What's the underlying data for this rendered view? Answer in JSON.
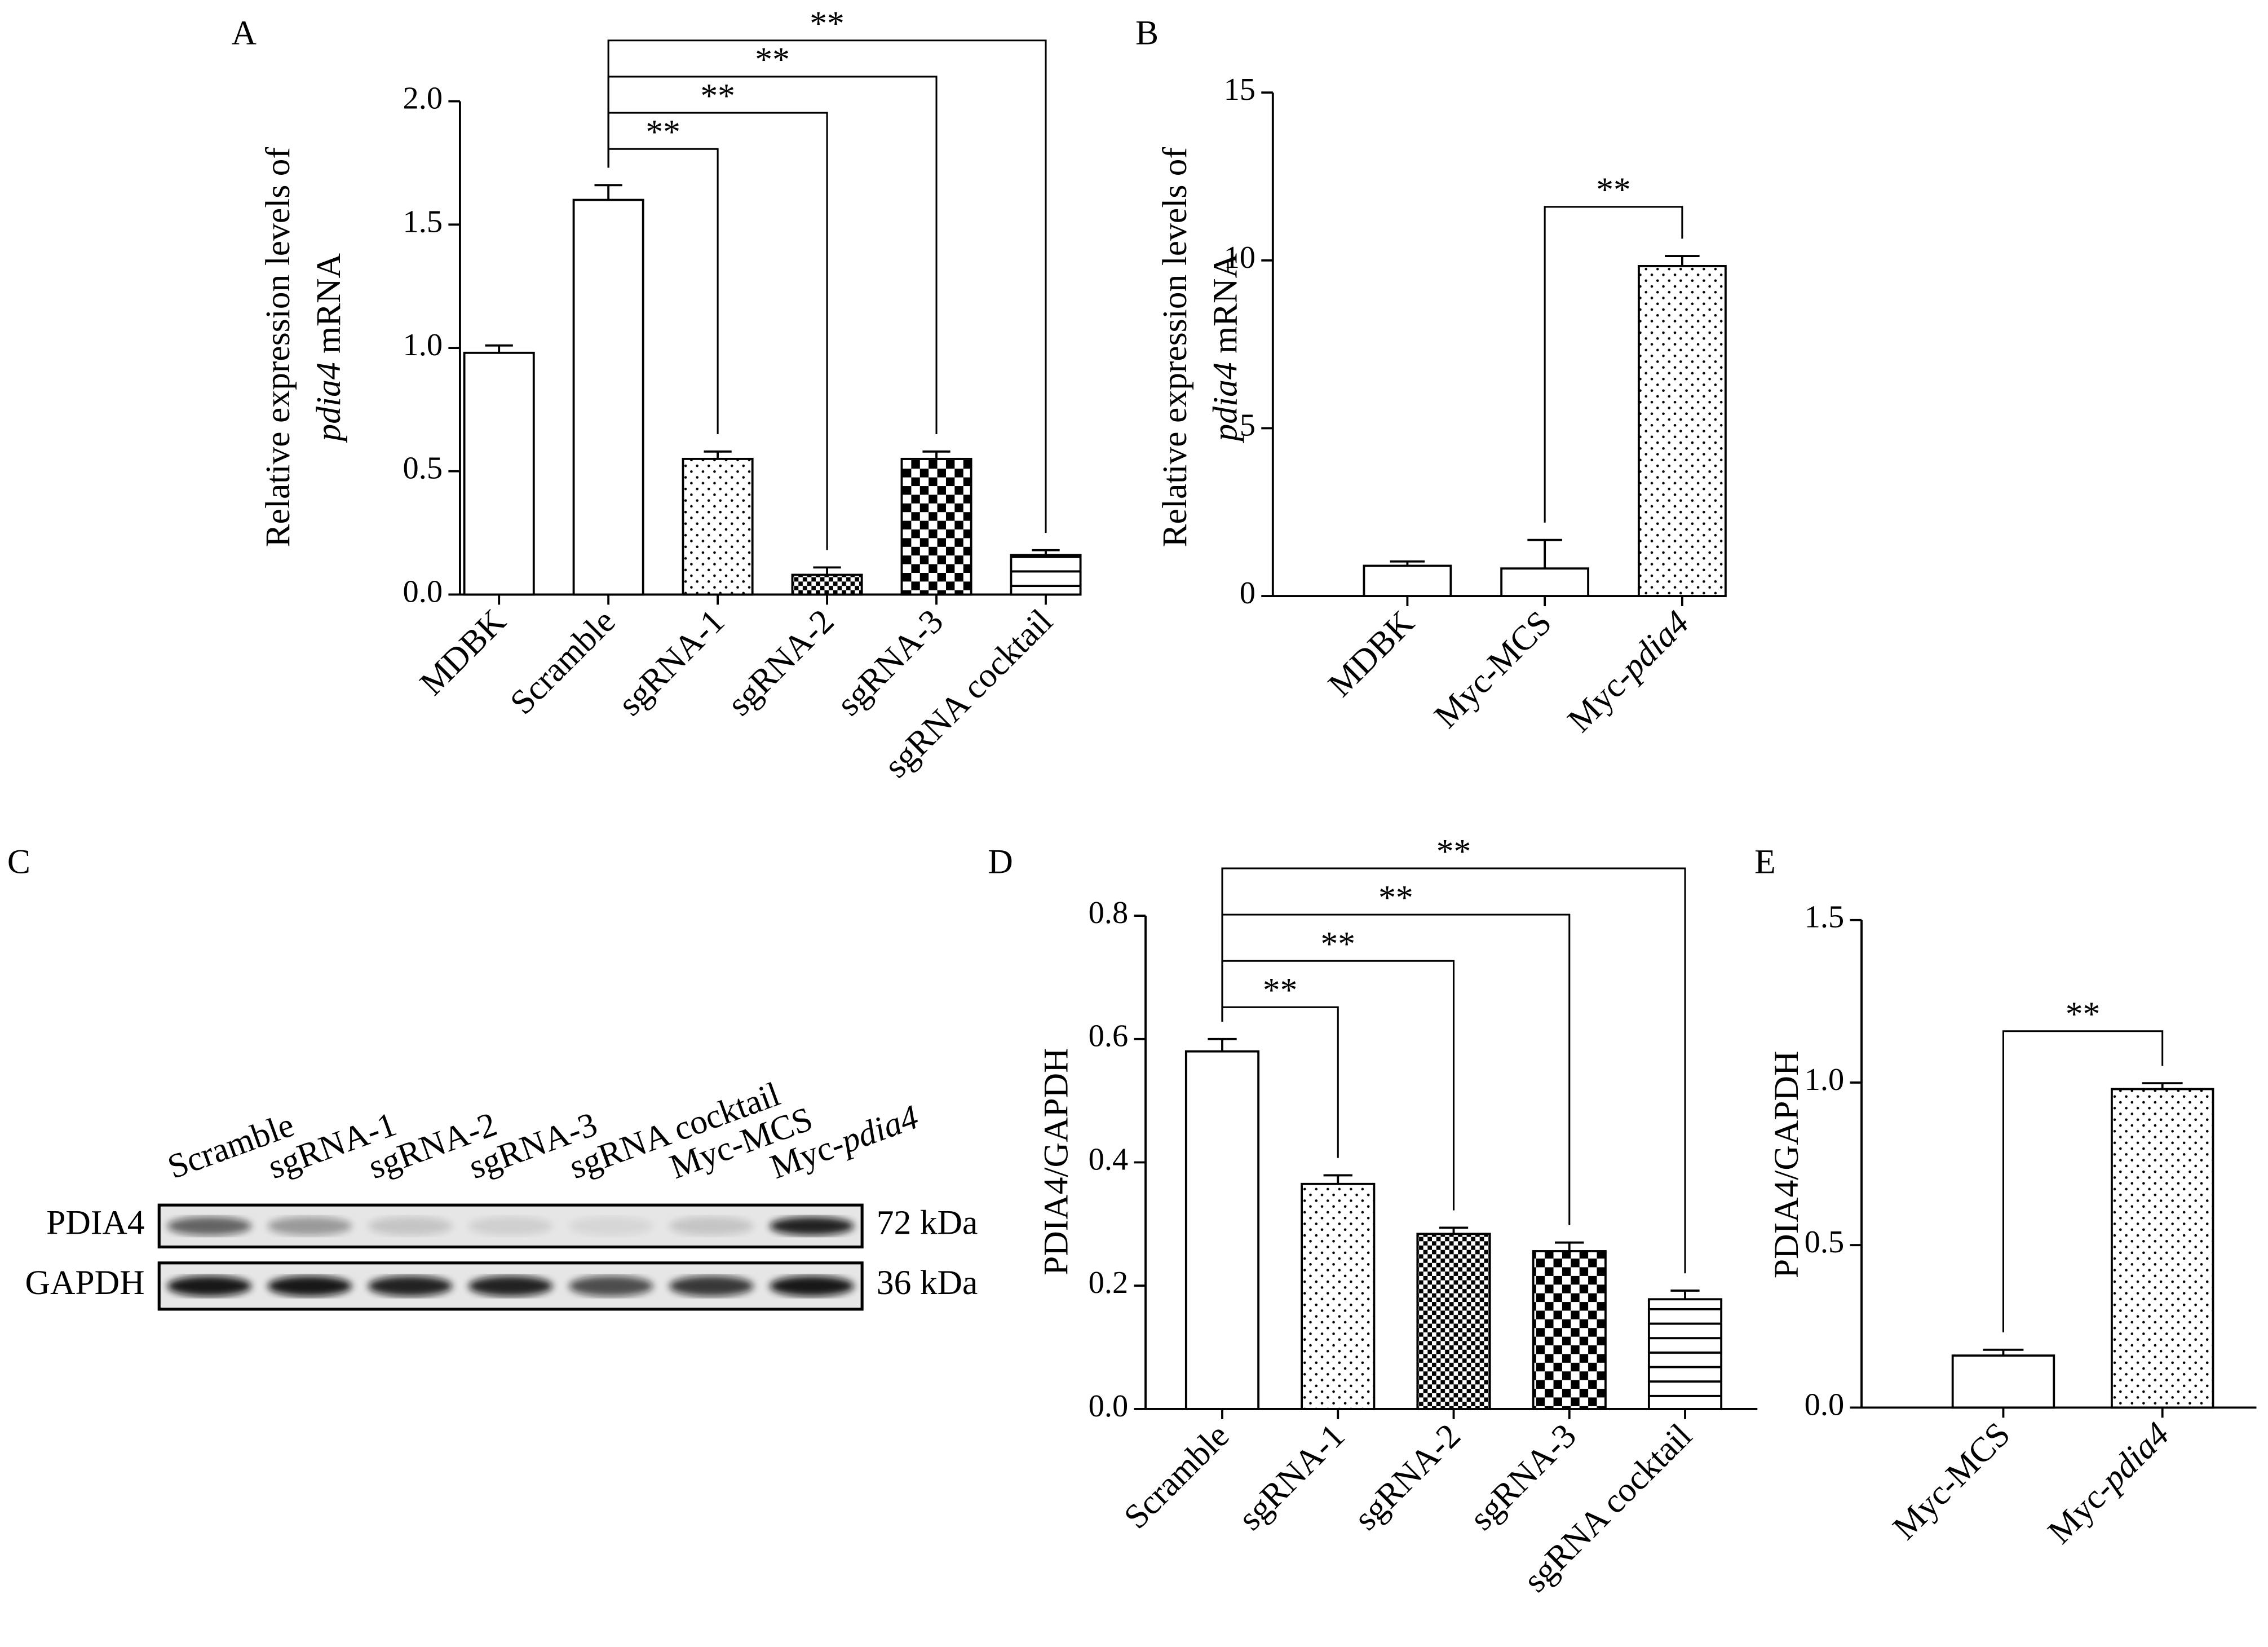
{
  "chart_data": [
    {
      "type": "bar",
      "panel": "A",
      "italic_term": "pdia4",
      "ylabel": [
        "Relative expression levels of",
        "pdia4 mRNA"
      ],
      "categories": [
        "MDBK",
        "Scramble",
        "sgRNA-1",
        "sgRNA-2",
        "sgRNA-3",
        "sgRNA cocktail"
      ],
      "values": [
        0.98,
        1.6,
        0.55,
        0.08,
        0.55,
        0.16
      ],
      "errors": [
        0.03,
        0.06,
        0.03,
        0.03,
        0.03,
        0.02
      ],
      "fills": [
        "none",
        "none",
        "dots",
        "checker-fine",
        "checker",
        "stripes"
      ],
      "ylim": [
        0,
        2
      ],
      "yticks": [
        {
          "value": 0,
          "label": "0.0"
        },
        {
          "value": 0.5,
          "label": "0.5"
        },
        {
          "value": 1,
          "label": "1.0"
        },
        {
          "value": 1.5,
          "label": "1.5"
        },
        {
          "value": 2,
          "label": "2.0"
        }
      ],
      "annotations": [
        {
          "from": 1,
          "to": 2,
          "label": "**"
        },
        {
          "from": 1,
          "to": 3,
          "label": "**"
        },
        {
          "from": 1,
          "to": 4,
          "label": "**"
        },
        {
          "from": 1,
          "to": 5,
          "label": "**"
        }
      ]
    },
    {
      "type": "bar",
      "panel": "B",
      "italic_term": "pdia4",
      "ylabel": [
        "Relative expression levels of",
        "pdia4 mRNA"
      ],
      "categories": [
        "MDBK",
        "Myc-MCS",
        "Myc-pdia4"
      ],
      "values": [
        0.9,
        0.82,
        9.83
      ],
      "errors": [
        0.13,
        0.85,
        0.3
      ],
      "fills": [
        "none",
        "none",
        "dots"
      ],
      "ylim": [
        0,
        15
      ],
      "yticks": [
        0,
        5,
        10,
        15
      ],
      "annotations": [
        {
          "from": 1,
          "to": 2,
          "label": "**"
        }
      ]
    },
    {
      "type": "blot",
      "panel": "C",
      "italic_term": "pdia4",
      "lanes": [
        "Scramble",
        "sgRNA-1",
        "sgRNA-2",
        "sgRNA-3",
        "sgRNA cocktail",
        "Myc-MCS",
        "Myc-pdia4"
      ],
      "rows": [
        {
          "name": "PDIA4",
          "size": "72 kDa"
        },
        {
          "name": "GAPDH",
          "size": "36 kDa"
        }
      ]
    },
    {
      "type": "bar",
      "panel": "D",
      "ylabel": [
        "PDIA4/GAPDH"
      ],
      "categories": [
        "Scramble",
        "sgRNA-1",
        "sgRNA-2",
        "sgRNA-3",
        "sgRNA cocktail"
      ],
      "values": [
        0.58,
        0.365,
        0.284,
        0.256,
        0.178
      ],
      "errors": [
        0.02,
        0.014,
        0.01,
        0.014,
        0.014
      ],
      "fills": [
        "none",
        "dots",
        "checker-fine",
        "checker",
        "stripes"
      ],
      "ylim": [
        0,
        0.8
      ],
      "yticks": [
        {
          "value": 0,
          "label": "0.0"
        },
        0.2,
        0.4,
        0.6,
        0.8
      ],
      "annotations": [
        {
          "from": 0,
          "to": 1,
          "label": "**"
        },
        {
          "from": 0,
          "to": 2,
          "label": "**"
        },
        {
          "from": 0,
          "to": 3,
          "label": "**"
        },
        {
          "from": 0,
          "to": 4,
          "label": "**"
        }
      ]
    },
    {
      "type": "bar",
      "panel": "E",
      "italic_term": "pdia4",
      "ylabel": [
        "PDIA4/GAPDH"
      ],
      "categories": [
        "Myc-MCS",
        "Myc-pdia4"
      ],
      "values": [
        0.16,
        0.98
      ],
      "errors": [
        0.018,
        0.018
      ],
      "fills": [
        "none",
        "dots"
      ],
      "ylim": [
        0,
        1.5
      ],
      "yticks": [
        {
          "value": 0,
          "label": "0.0"
        },
        {
          "value": 0.5,
          "label": "0.5"
        },
        {
          "value": 1,
          "label": "1.0"
        },
        {
          "value": 1.5,
          "label": "1.5"
        }
      ],
      "annotations": [
        {
          "from": 0,
          "to": 1,
          "label": "**"
        }
      ]
    }
  ]
}
